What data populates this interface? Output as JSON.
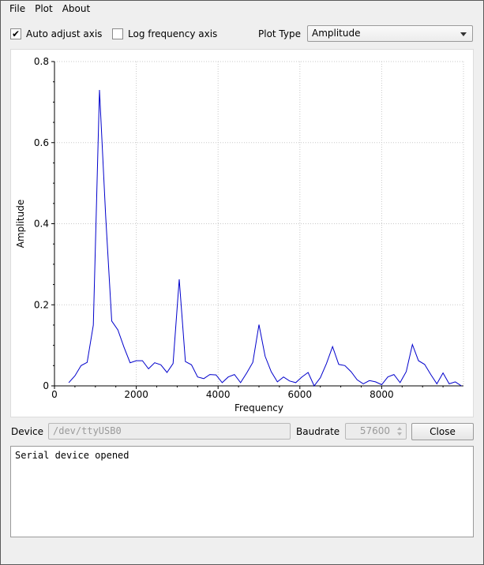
{
  "menu": {
    "items": [
      "File",
      "Plot",
      "About"
    ]
  },
  "toolbar": {
    "auto_adjust_label": "Auto adjust axis",
    "auto_adjust_checked": true,
    "log_freq_label": "Log frequency axis",
    "log_freq_checked": false,
    "plot_type_label": "Plot Type",
    "plot_type_value": "Amplitude"
  },
  "chart_data": {
    "type": "line",
    "title": "",
    "xlabel": "Frequency",
    "ylabel": "Amplitude",
    "xlim": [
      0,
      10000
    ],
    "ylim": [
      0,
      0.8
    ],
    "x_ticks": [
      0,
      2000,
      4000,
      6000,
      8000
    ],
    "y_ticks": [
      0,
      0.2,
      0.4,
      0.6,
      0.8
    ],
    "y_tick_labels": [
      "0",
      "0.2",
      "0.4",
      "0.6",
      "0.8"
    ],
    "grid": true,
    "series_color": "#0000cc",
    "series": [
      {
        "values_x": [
          350,
          500,
          650,
          800,
          950,
          1100,
          1250,
          1400,
          1550,
          1700,
          1850,
          2000,
          2150,
          2300,
          2450,
          2600,
          2750,
          2900,
          3050,
          3200,
          3350,
          3500,
          3650,
          3800,
          3950,
          4100,
          4250,
          4400,
          4550,
          4700,
          4850,
          5000,
          5150,
          5300,
          5450,
          5600,
          5750,
          5900,
          6050,
          6200,
          6350,
          6500,
          6650,
          6800,
          6950,
          7100,
          7250,
          7400,
          7550,
          7700,
          7850,
          8000,
          8150,
          8300,
          8450,
          8600,
          8750,
          8900,
          9050,
          9200,
          9350,
          9500,
          9650,
          9800,
          9950
        ],
        "values_y": [
          0.008,
          0.025,
          0.05,
          0.058,
          0.15,
          0.73,
          0.42,
          0.16,
          0.138,
          0.095,
          0.057,
          0.062,
          0.062,
          0.042,
          0.057,
          0.052,
          0.033,
          0.055,
          0.263,
          0.06,
          0.052,
          0.022,
          0.018,
          0.028,
          0.027,
          0.008,
          0.022,
          0.028,
          0.008,
          0.032,
          0.058,
          0.151,
          0.073,
          0.035,
          0.01,
          0.022,
          0.012,
          0.008,
          0.022,
          0.033,
          0.0,
          0.02,
          0.055,
          0.097,
          0.053,
          0.05,
          0.035,
          0.015,
          0.005,
          0.013,
          0.01,
          0.003,
          0.022,
          0.028,
          0.008,
          0.035,
          0.102,
          0.062,
          0.053,
          0.028,
          0.005,
          0.032,
          0.005,
          0.01,
          0.0
        ]
      }
    ]
  },
  "device": {
    "label": "Device",
    "value": "/dev/ttyUSB0",
    "baud_label": "Baudrate",
    "baud_value": "57600",
    "close_label": "Close"
  },
  "log": {
    "text": "Serial device opened"
  }
}
